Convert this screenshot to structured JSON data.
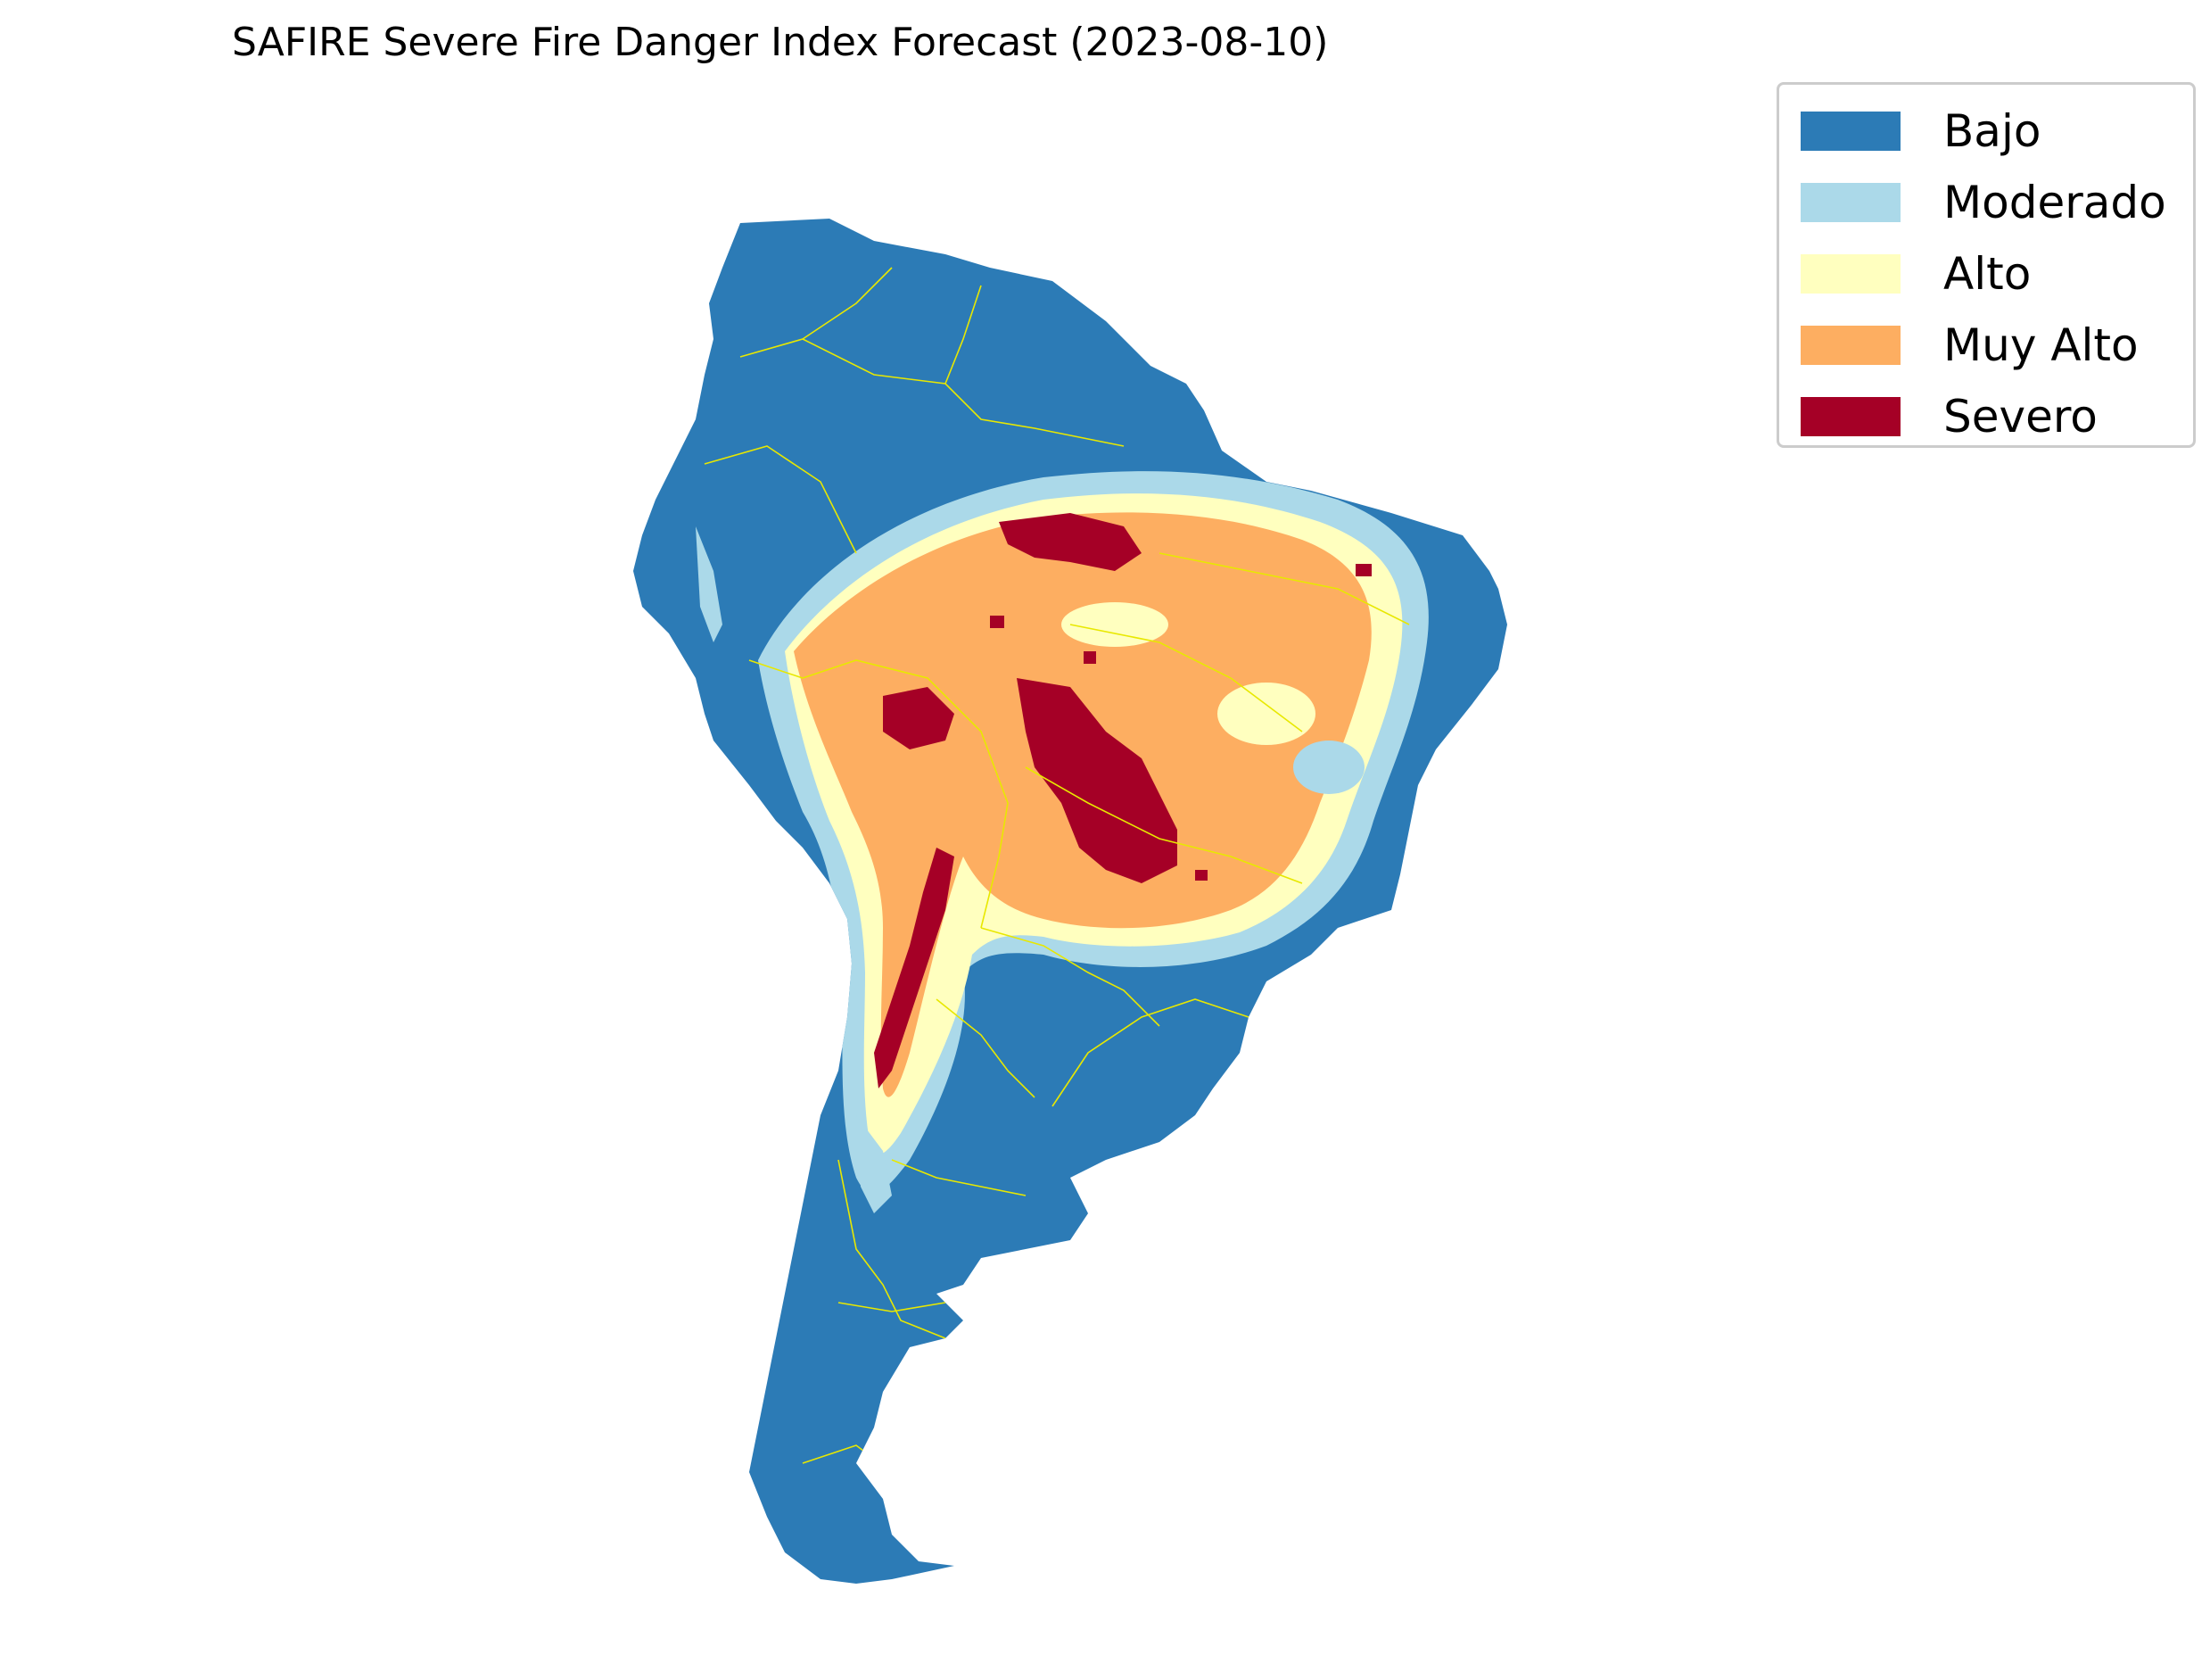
{
  "title": "SAFIRE Severe Fire Danger Index Forecast (2023-08-10)",
  "legend": {
    "placement": "top-right",
    "items": [
      {
        "label": "Bajo",
        "color": "#2c7bb6"
      },
      {
        "label": "Moderado",
        "color": "#abd9e9"
      },
      {
        "label": "Alto",
        "color": "#ffffbf"
      },
      {
        "label": "Muy Alto",
        "color": "#fdae61"
      },
      {
        "label": "Severo",
        "color": "#a50026"
      }
    ]
  },
  "map": {
    "region": "South America",
    "boundary_color": "#e8e800"
  }
}
